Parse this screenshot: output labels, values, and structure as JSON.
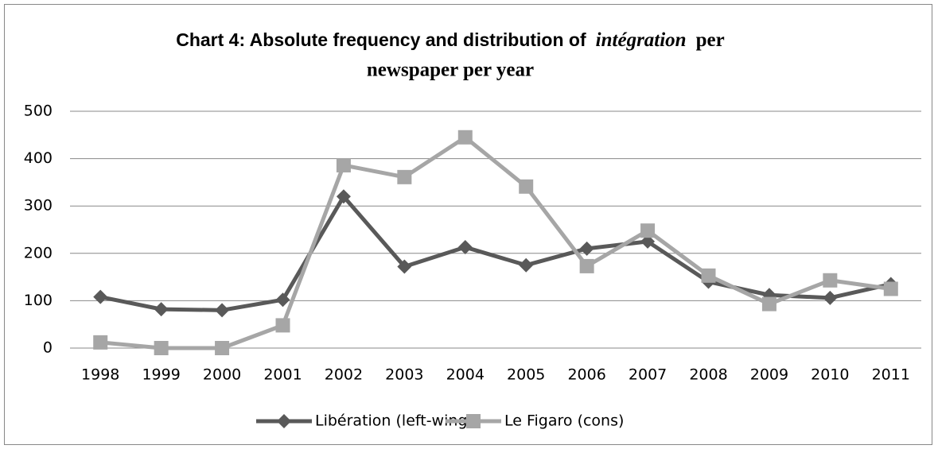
{
  "chart_data": {
    "type": "line",
    "title": [
      "Chart 4: Absolute frequency and distribution of",
      "intégration",
      "per",
      "newspaper per year"
    ],
    "categories": [
      "1998",
      "1999",
      "2000",
      "2001",
      "2002",
      "2003",
      "2004",
      "2005",
      "2006",
      "2007",
      "2008",
      "2009",
      "2010",
      "2011"
    ],
    "series": [
      {
        "name": "Libération (left-wing)",
        "color": "#595959",
        "marker": "diamond",
        "values": [
          108,
          82,
          80,
          102,
          320,
          172,
          213,
          175,
          210,
          225,
          140,
          112,
          106,
          135
        ]
      },
      {
        "name": "Le Figaro (cons)",
        "color": "#a6a6a6",
        "marker": "square",
        "values": [
          12,
          0,
          0,
          48,
          386,
          361,
          445,
          341,
          173,
          248,
          153,
          93,
          143,
          125
        ]
      }
    ],
    "ylim": [
      0,
      500
    ],
    "yticks": [
      0,
      100,
      200,
      300,
      400,
      500
    ],
    "grid": true,
    "legend": "bottom"
  }
}
